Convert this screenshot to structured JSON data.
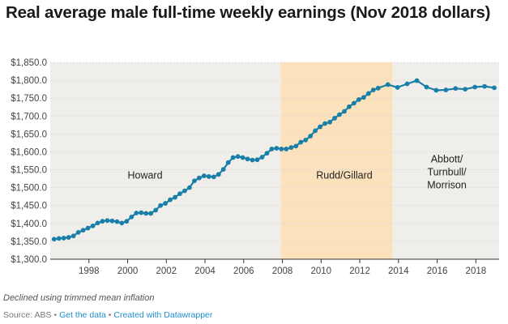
{
  "title": "Real average male full-time weekly earnings (Nov 2018 dollars)",
  "note": "Declined using trimmed mean inflation",
  "footer": {
    "source_label": "Source: ABS",
    "get_data": "Get the data",
    "created_with": "Created with Datawrapper",
    "separator": "•"
  },
  "colors": {
    "line": "#1a7fa8",
    "howard_shade": "#f0eeeb",
    "rudd_shade": "#fbe2bd",
    "later_shade": "#f0eeeb"
  },
  "chart_data": {
    "type": "line",
    "title": "Real average male full-time weekly earnings (Nov 2018 dollars)",
    "xlabel": "",
    "ylabel": "",
    "xlim": [
      1996.0,
      2019.2
    ],
    "ylim": [
      1300,
      1850
    ],
    "y_ticks": [
      1300,
      1350,
      1400,
      1450,
      1500,
      1550,
      1600,
      1650,
      1700,
      1750,
      1800,
      1850
    ],
    "y_tick_labels": [
      "$1,300.0",
      "$1,350.0",
      "$1,400.0",
      "$1,450.0",
      "$1,500.0",
      "$1,550.0",
      "$1,600.0",
      "$1,650.0",
      "$1,700.0",
      "$1,750.0",
      "$1,800.0",
      "$1,850.0"
    ],
    "x_ticks": [
      1998,
      2000,
      2002,
      2004,
      2006,
      2008,
      2010,
      2012,
      2014,
      2016,
      2018
    ],
    "x_tick_labels": [
      "1998",
      "2000",
      "2002",
      "2004",
      "2006",
      "2008",
      "2010",
      "2012",
      "2014",
      "2016",
      "2018"
    ],
    "grid": true,
    "ranges": [
      {
        "label": "Howard",
        "start": 1996.0,
        "end": 2007.9,
        "label_x": 2000.9,
        "label_y": 1525
      },
      {
        "label": "Rudd/Gillard",
        "start": 2007.9,
        "end": 2013.7,
        "label_x": 2011.2,
        "label_y": 1525
      },
      {
        "label": "Abbott/\nTurnbull/\nMorrison",
        "start": 2013.7,
        "end": 2019.2,
        "label_x": 2016.5,
        "label_y": 1570
      }
    ],
    "series": [
      {
        "name": "Real average male full-time weekly earnings",
        "x": [
          1996.2,
          1996.45,
          1996.7,
          1996.95,
          1997.2,
          1997.45,
          1997.7,
          1997.95,
          1998.2,
          1998.45,
          1998.7,
          1998.95,
          1999.2,
          1999.45,
          1999.7,
          1999.95,
          2000.2,
          2000.45,
          2000.7,
          2000.95,
          2001.2,
          2001.45,
          2001.7,
          2001.95,
          2002.2,
          2002.45,
          2002.7,
          2002.95,
          2003.2,
          2003.45,
          2003.7,
          2003.95,
          2004.2,
          2004.45,
          2004.7,
          2004.95,
          2005.2,
          2005.45,
          2005.7,
          2005.95,
          2006.2,
          2006.45,
          2006.7,
          2006.95,
          2007.2,
          2007.45,
          2007.7,
          2007.95,
          2008.2,
          2008.45,
          2008.7,
          2008.95,
          2009.2,
          2009.45,
          2009.7,
          2009.95,
          2010.2,
          2010.45,
          2010.7,
          2010.95,
          2011.2,
          2011.45,
          2011.7,
          2011.95,
          2012.2,
          2012.45,
          2012.7,
          2012.95,
          2013.45,
          2013.95,
          2014.45,
          2014.95,
          2015.45,
          2015.95,
          2016.45,
          2016.95,
          2017.45,
          2017.95,
          2018.45,
          2018.95
        ],
        "values": [
          1356,
          1358,
          1359,
          1361,
          1365,
          1375,
          1381,
          1387,
          1393,
          1401,
          1406,
          1408,
          1407,
          1405,
          1401,
          1406,
          1418,
          1429,
          1430,
          1428,
          1428,
          1437,
          1450,
          1456,
          1466,
          1473,
          1483,
          1491,
          1500,
          1519,
          1527,
          1533,
          1531,
          1530,
          1537,
          1551,
          1570,
          1584,
          1587,
          1584,
          1580,
          1577,
          1578,
          1585,
          1596,
          1608,
          1610,
          1608,
          1608,
          1612,
          1616,
          1627,
          1633,
          1644,
          1659,
          1670,
          1679,
          1683,
          1694,
          1704,
          1713,
          1726,
          1736,
          1746,
          1752,
          1763,
          1773,
          1778,
          1788,
          1780,
          1790,
          1799,
          1781,
          1772,
          1773,
          1777,
          1775,
          1781,
          1783,
          1779
        ]
      }
    ]
  }
}
